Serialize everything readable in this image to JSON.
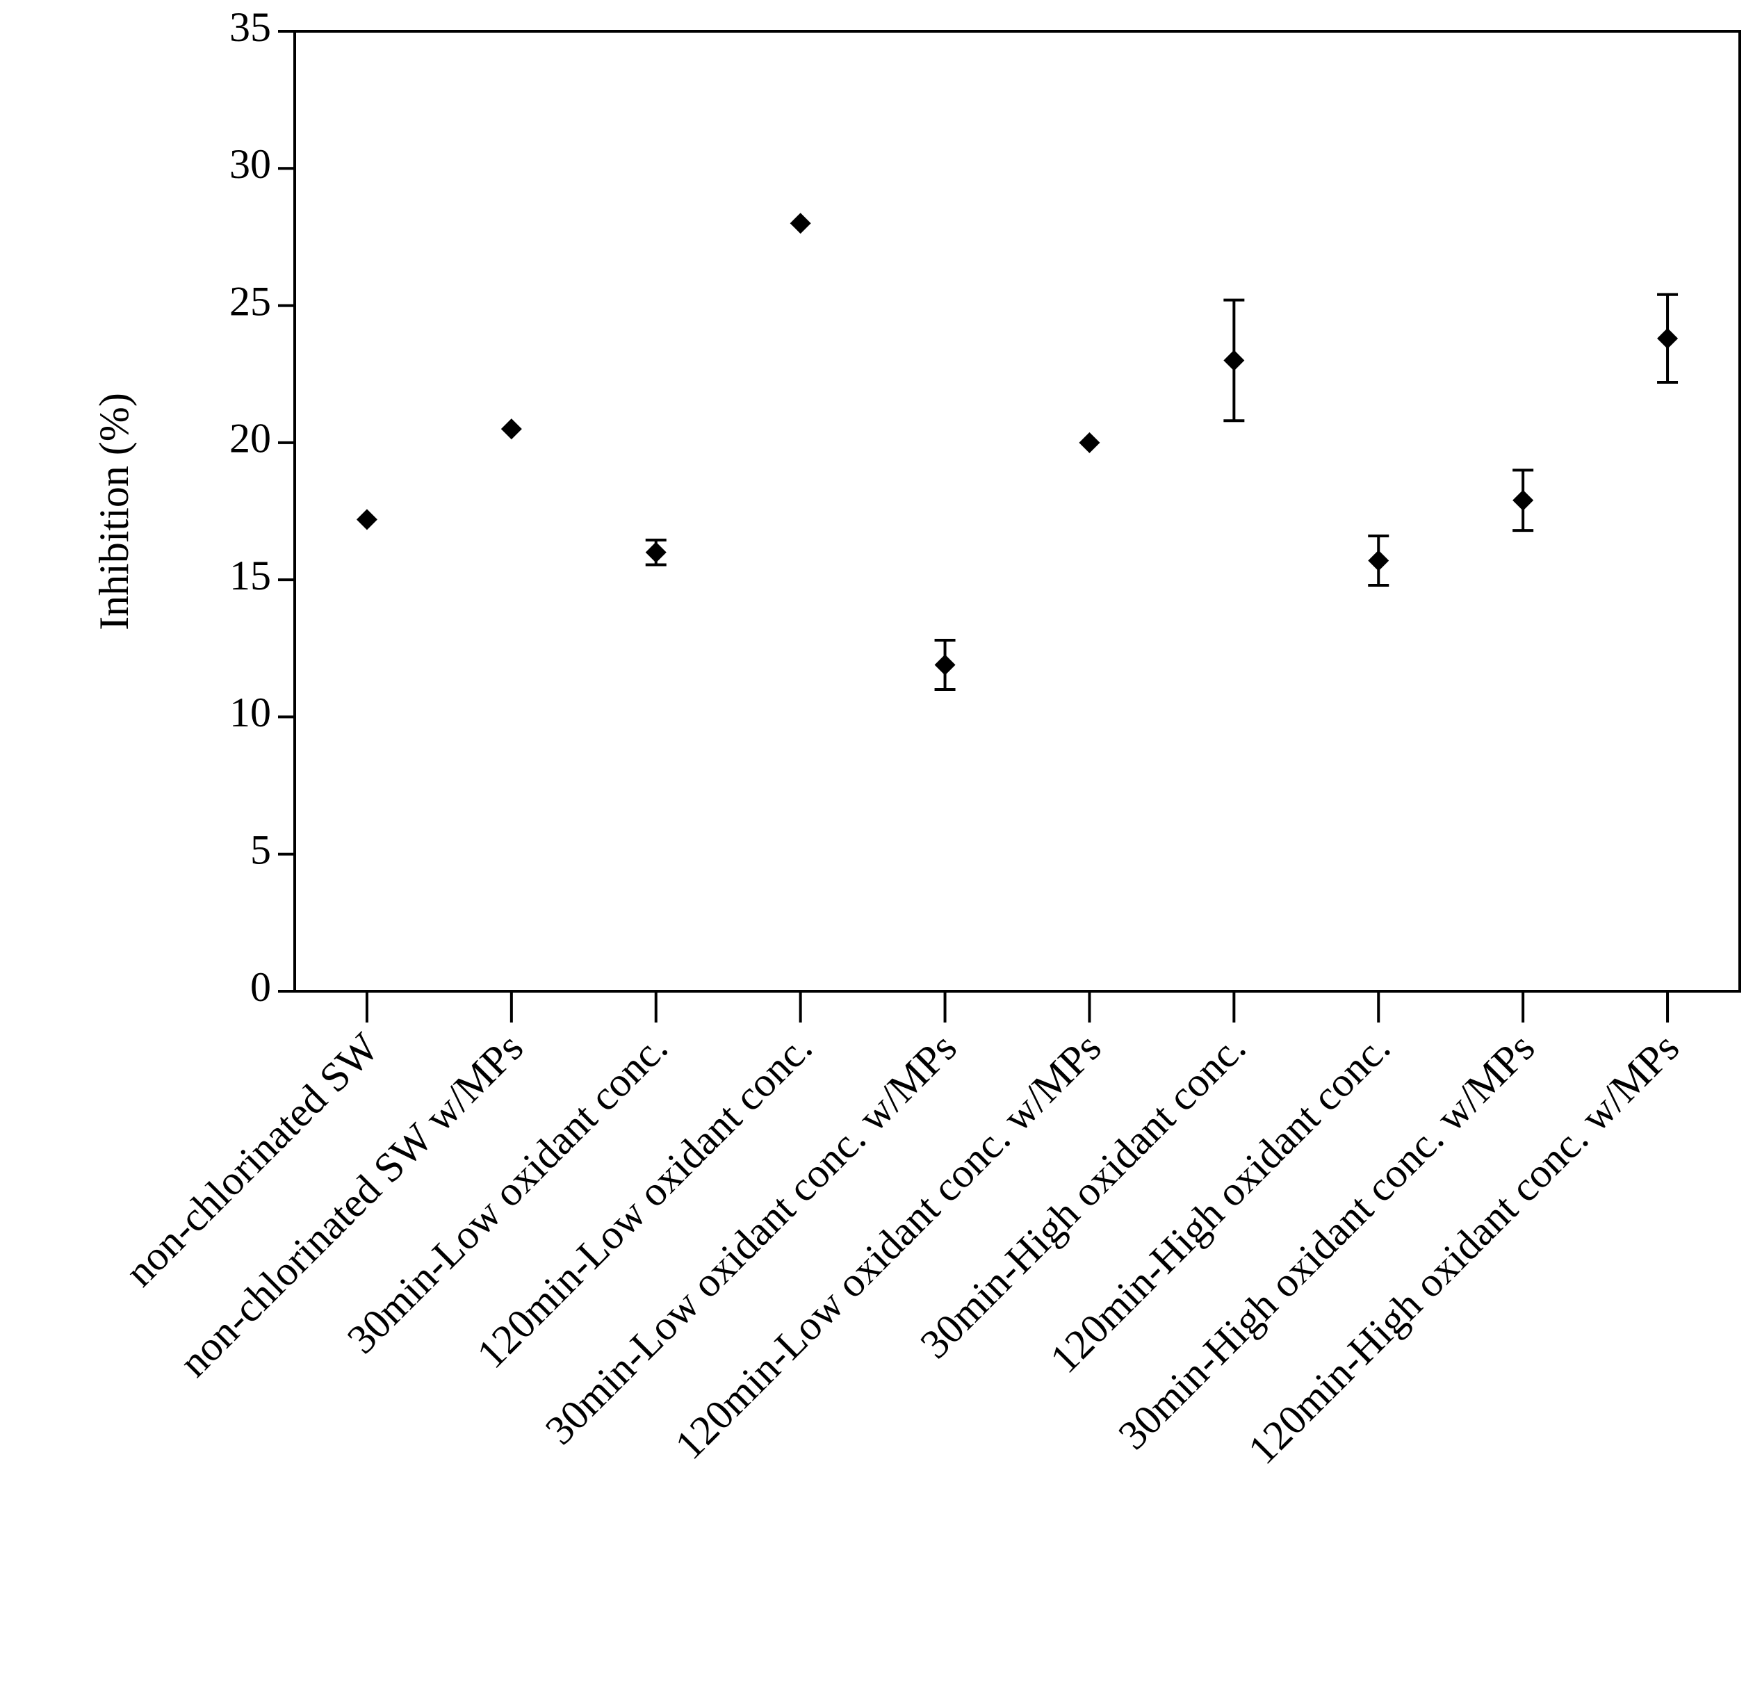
{
  "chart_data": {
    "type": "scatter",
    "y_label": "Inhibition (%)",
    "categories": [
      "non-chlorinated SW",
      "non-chlorinated SW w/MPs",
      "30min-Low oxidant conc.",
      "120min-Low oxidant conc.",
      "30min-Low oxidant conc. w/MPs",
      "120min-Low oxidant conc. w/MPs",
      "30min-High oxidant conc.",
      "120min-High oxidant conc.",
      "30min-High oxidant conc. w/MPs",
      "120min-High oxidant conc. w/MPs"
    ],
    "values": [
      17.2,
      20.5,
      16.0,
      28.0,
      11.9,
      20.0,
      23.0,
      15.7,
      17.9,
      23.8
    ],
    "errors": [
      null,
      null,
      0.45,
      null,
      0.9,
      null,
      2.2,
      0.9,
      1.1,
      1.6
    ],
    "color": "#000000",
    "ylim": [
      0,
      35
    ],
    "yticks": [
      0,
      5,
      10,
      15,
      20,
      25,
      30,
      35
    ],
    "grid": false
  }
}
